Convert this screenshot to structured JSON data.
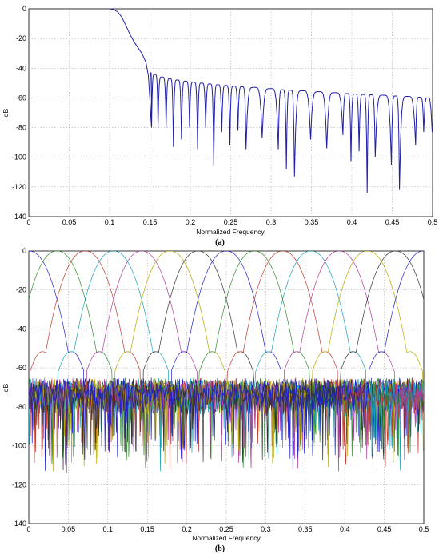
{
  "chart_data": [
    {
      "type": "line",
      "caption": "(a)",
      "xlabel": "Normalized Frequency",
      "ylabel": "dB",
      "xlim": [
        0,
        0.5
      ],
      "ylim": [
        -140,
        0
      ],
      "grid": true,
      "x_ticks": [
        "0",
        "0.05",
        "0.1",
        "0.15",
        "0.2",
        "0.25",
        "0.3",
        "0.35",
        "0.4",
        "0.45",
        "0.5"
      ],
      "y_ticks": [
        "0",
        "-20",
        "-40",
        "-60",
        "-80",
        "-100",
        "-120",
        "-140"
      ],
      "passband_edge": 0.1,
      "stopband_edge": 0.15,
      "first_sidelobe_db": -43,
      "last_sidelobe_db": -60,
      "null_depth_db": -80,
      "deep_nulls": [
        {
          "x": 0.152,
          "y": -80
        },
        {
          "x": 0.16,
          "y": -80
        },
        {
          "x": 0.17,
          "y": -80
        },
        {
          "x": 0.179,
          "y": -93
        },
        {
          "x": 0.189,
          "y": -88
        },
        {
          "x": 0.199,
          "y": -80
        },
        {
          "x": 0.209,
          "y": -95
        },
        {
          "x": 0.219,
          "y": -80
        },
        {
          "x": 0.229,
          "y": -106
        },
        {
          "x": 0.239,
          "y": -83
        },
        {
          "x": 0.249,
          "y": -92
        },
        {
          "x": 0.259,
          "y": -82
        },
        {
          "x": 0.269,
          "y": -95
        },
        {
          "x": 0.289,
          "y": -87
        },
        {
          "x": 0.309,
          "y": -95
        },
        {
          "x": 0.319,
          "y": -108
        },
        {
          "x": 0.329,
          "y": -113
        },
        {
          "x": 0.349,
          "y": -88
        },
        {
          "x": 0.369,
          "y": -94
        },
        {
          "x": 0.389,
          "y": -85
        },
        {
          "x": 0.399,
          "y": -103
        },
        {
          "x": 0.409,
          "y": -96
        },
        {
          "x": 0.419,
          "y": -124
        },
        {
          "x": 0.429,
          "y": -100
        },
        {
          "x": 0.449,
          "y": -105
        },
        {
          "x": 0.459,
          "y": -122
        },
        {
          "x": 0.479,
          "y": -92
        },
        {
          "x": 0.489,
          "y": -83
        }
      ],
      "color": "#1f1faa"
    },
    {
      "type": "line",
      "caption": "(b)",
      "xlabel": "Normalized Frequency",
      "ylabel": "dB",
      "xlim": [
        0,
        0.5
      ],
      "ylim": [
        -140,
        0
      ],
      "grid": true,
      "x_ticks": [
        "0",
        "0.05",
        "0.1",
        "0.15",
        "0.2",
        "0.25",
        "0.3",
        "0.35",
        "0.4",
        "0.45",
        "0.5"
      ],
      "y_ticks": [
        "0",
        "-20",
        "-40",
        "-60",
        "-80",
        "-100",
        "-120",
        "-140"
      ],
      "channel_centers": [
        0,
        0.0357,
        0.0714,
        0.1071,
        0.1429,
        0.1786,
        0.2143,
        0.25,
        0.2857,
        0.3214,
        0.3571,
        0.3929,
        0.4286,
        0.4643,
        0.5
      ],
      "channel_half_width": 0.025,
      "crossover_db": -50,
      "sidelobe_floor_db": -75,
      "colors": [
        "#1f1fd0",
        "#2e8b2e",
        "#c0392b",
        "#17a2b8",
        "#b03aa0",
        "#b8a800",
        "#333333"
      ]
    }
  ]
}
